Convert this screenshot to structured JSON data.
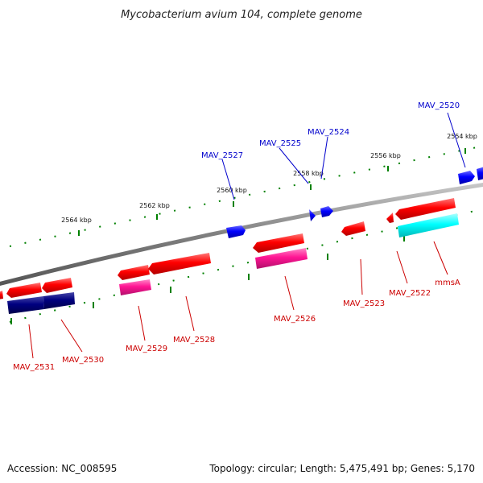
{
  "title": "Mycobacterium avium 104, complete genome",
  "footer": {
    "accession": "Accession: NC_008595",
    "summary": "Topology: circular; Length: 5,475,491 bp; Genes: 5,170"
  },
  "colors": {
    "backbone": "#808080",
    "forward_gene": "#0000ff",
    "reverse_gene": "#ff0000",
    "cds_pink": "#ff1493",
    "cds_navy": "#000080",
    "cds_cyan": "#00ffff",
    "tick": "#008000",
    "label_forward": "#0000cc",
    "label_reverse": "#cc0000"
  },
  "kbp_marks": [
    "2554 kbp",
    "2556 kbp",
    "2558 kbp",
    "2560 kbp",
    "2562 kbp",
    "2564 kbp"
  ],
  "genes_forward": [
    "MAV_2520",
    "MAV_2524",
    "MAV_2525",
    "MAV_2527"
  ],
  "genes_reverse": [
    "mmsA",
    "MAV_2522",
    "MAV_2523",
    "MAV_2526",
    "MAV_2528",
    "MAV_2529",
    "MAV_2530",
    "MAV_2531"
  ]
}
